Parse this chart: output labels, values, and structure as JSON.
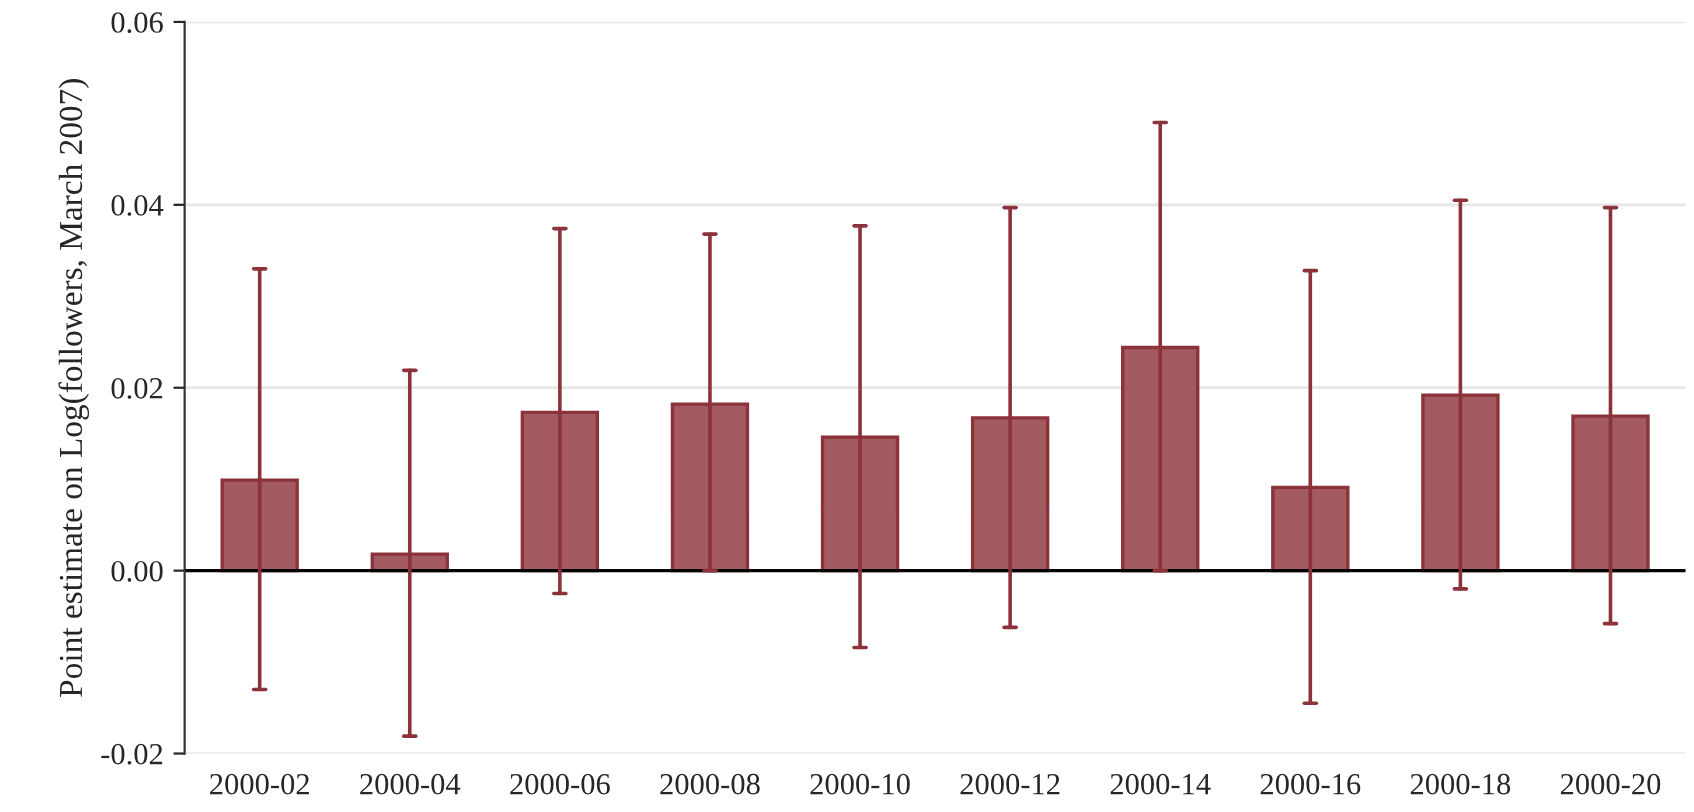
{
  "chart_data": {
    "type": "bar",
    "ylabel": "Point estimate on Log(followers, March 2007)",
    "categories": [
      "2000-02",
      "2000-04",
      "2000-06",
      "2000-08",
      "2000-10",
      "2000-12",
      "2000-14",
      "2000-16",
      "2000-18",
      "2000-20"
    ],
    "series": [
      {
        "color": "#a35a60",
        "values": [
          0.0099,
          0.0018,
          0.0173,
          0.0182,
          0.0146,
          0.0167,
          0.0244,
          0.0091,
          0.0192,
          0.0169
        ],
        "errors": [
          [
            -0.013,
            0.033
          ],
          [
            -0.0181,
            0.0219
          ],
          [
            -0.0025,
            0.0374
          ],
          [
            0.0,
            0.0368
          ],
          [
            -0.0084,
            0.0377
          ],
          [
            -0.0062,
            0.0397
          ],
          [
            0.0,
            0.049
          ],
          [
            -0.0145,
            0.0328
          ],
          [
            -0.002,
            0.0405
          ],
          [
            -0.0058,
            0.0397
          ]
        ]
      }
    ],
    "ylim": [
      -0.02,
      0.06
    ],
    "yticks": [
      {
        "value": -0.02,
        "label": "-0.02"
      },
      {
        "value": 0,
        "label": "0.00"
      },
      {
        "value": 0.02,
        "label": "0.02"
      },
      {
        "value": 0.04,
        "label": "0.04"
      },
      {
        "value": 0.06,
        "label": "0.06"
      }
    ],
    "ref_lines": [
      {
        "axis": "y",
        "value": 0,
        "color": "#000000"
      }
    ],
    "grid": "y",
    "legend": false
  }
}
